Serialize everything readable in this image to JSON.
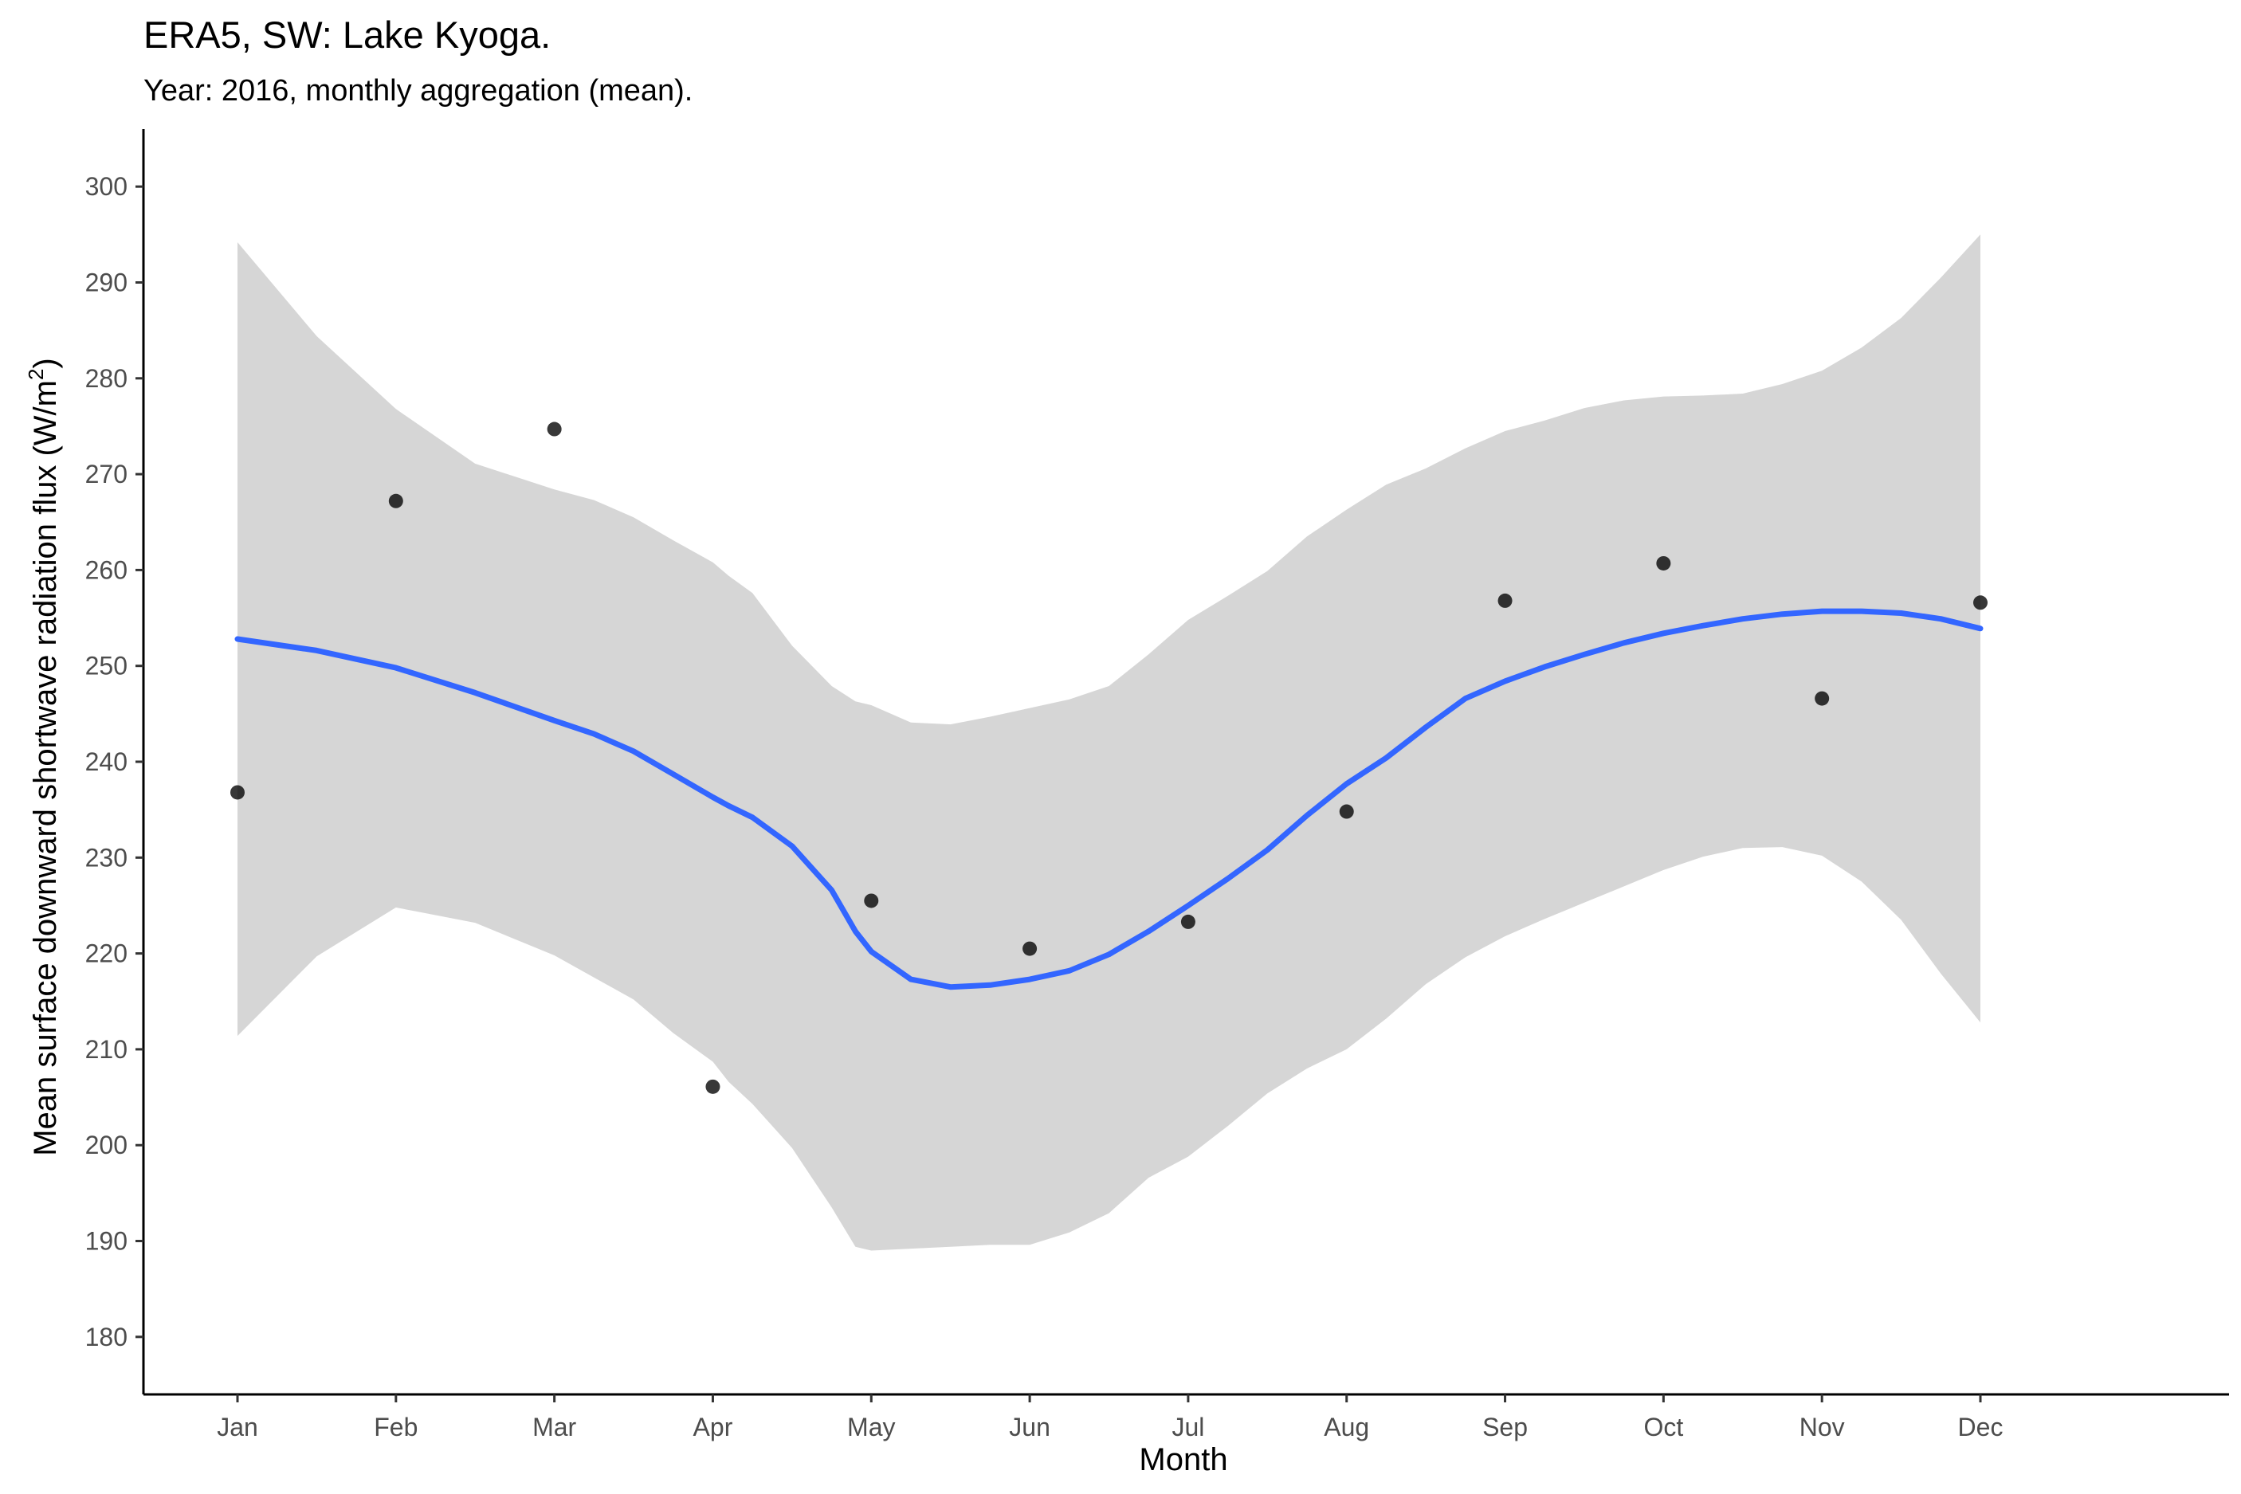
{
  "chart_data": {
    "type": "scatter",
    "title": "ERA5, SW: Lake Kyoga.",
    "subtitle": "Year: 2016, monthly aggregation (mean).",
    "xlabel": "Month",
    "ylabel_main": "Mean surface downward shortwave radiation flux (W/m",
    "ylabel_sup": "2",
    "ylabel_close": ")",
    "categories": [
      "Jan",
      "Feb",
      "Mar",
      "Apr",
      "May",
      "Jun",
      "Jul",
      "Aug",
      "Sep",
      "Oct",
      "Nov",
      "Dec"
    ],
    "ylim": [
      174,
      306
    ],
    "yticks": [
      180,
      190,
      200,
      210,
      220,
      230,
      240,
      250,
      260,
      270,
      280,
      290,
      300
    ],
    "points": [
      236.8,
      267.2,
      274.7,
      206.1,
      225.5,
      220.5,
      223.3,
      234.8,
      256.8,
      260.7,
      246.6,
      256.6
    ],
    "smooth": {
      "x": [
        1,
        1.5,
        2,
        2.5,
        3,
        3.25,
        3.5,
        3.75,
        4,
        4.1,
        4.25,
        4.5,
        4.75,
        4.9,
        5,
        5.25,
        5.5,
        5.75,
        6,
        6.25,
        6.5,
        6.75,
        7,
        7.25,
        7.5,
        7.75,
        8,
        8.25,
        8.5,
        8.75,
        9,
        9.25,
        9.5,
        9.75,
        10,
        10.25,
        10.5,
        10.75,
        11,
        11.25,
        11.5,
        11.75,
        12
      ],
      "y": [
        252.8,
        251.6,
        249.8,
        247.2,
        244.3,
        242.9,
        241.1,
        238.7,
        236.3,
        235.4,
        234.2,
        231.2,
        226.6,
        222.3,
        220.2,
        217.3,
        216.5,
        216.7,
        217.3,
        218.2,
        219.9,
        222.3,
        225.0,
        227.8,
        230.8,
        234.4,
        237.7,
        240.4,
        243.6,
        246.6,
        248.4,
        249.9,
        251.2,
        252.4,
        253.4,
        254.2,
        254.9,
        255.4,
        255.7,
        255.7,
        255.5,
        254.9,
        253.9
      ]
    },
    "band_upper": [
      294.2,
      284.4,
      276.8,
      271.1,
      268.4,
      267.3,
      265.5,
      263.1,
      260.8,
      259.4,
      257.6,
      252.1,
      247.9,
      246.3,
      245.9,
      244.1,
      243.9,
      244.7,
      245.6,
      246.5,
      247.9,
      251.2,
      254.8,
      257.3,
      259.9,
      263.5,
      266.3,
      268.9,
      270.6,
      272.7,
      274.5,
      275.6,
      276.9,
      277.7,
      278.1,
      278.2,
      278.4,
      279.4,
      280.8,
      283.2,
      286.3,
      290.5,
      295.0
    ],
    "band_lower": [
      211.4,
      219.7,
      224.8,
      223.2,
      219.8,
      217.5,
      215.2,
      211.7,
      208.7,
      206.6,
      204.3,
      199.7,
      193.5,
      189.4,
      189.0,
      189.2,
      189.4,
      189.6,
      189.6,
      190.9,
      192.9,
      196.6,
      198.8,
      202.0,
      205.4,
      208.0,
      210.0,
      213.2,
      216.8,
      219.6,
      221.8,
      223.6,
      225.3,
      227.0,
      228.7,
      230.1,
      231.0,
      231.1,
      230.2,
      227.5,
      223.5,
      217.9,
      212.8
    ],
    "colors": {
      "line": "#3366FF",
      "band": "#D6D6D6",
      "points": "#000000",
      "axis": "#000000"
    },
    "grid": false
  }
}
